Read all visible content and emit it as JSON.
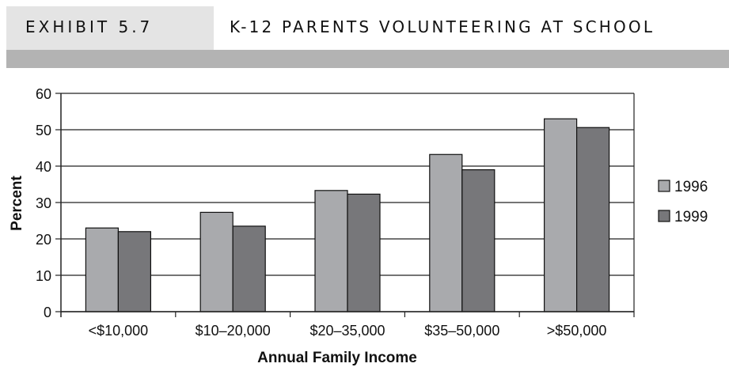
{
  "header": {
    "exhibit": "EXHIBIT 5.7",
    "title": "K-12 PARENTS VOLUNTEERING AT SCHOOL"
  },
  "chart_data": {
    "type": "bar",
    "categories": [
      "<$10,000",
      "$10–20,000",
      "$20–35,000",
      "$35–50,000",
      ">$50,000"
    ],
    "series": [
      {
        "name": "1996",
        "color": "#a9aaad",
        "values": [
          23,
          27.3,
          33.3,
          43.2,
          53
        ]
      },
      {
        "name": "1999",
        "color": "#77777a",
        "values": [
          22,
          23.5,
          32.3,
          39,
          50.6
        ]
      }
    ],
    "xlabel": "Annual Family Income",
    "ylabel": "Percent",
    "ylim": [
      0,
      60
    ],
    "yticks": [
      "0",
      "10",
      "20",
      "30",
      "40",
      "50",
      "60"
    ],
    "grid": true,
    "legend": "right"
  }
}
